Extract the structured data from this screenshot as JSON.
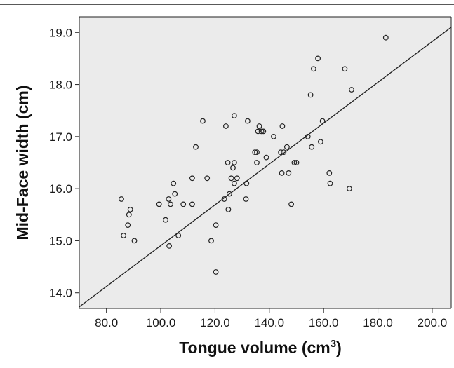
{
  "colors": {
    "plot_background": "#ebebeb",
    "axis": "#222222",
    "marker_stroke": "#222222",
    "fit_line": "#222222"
  },
  "chart_data": {
    "type": "scatter",
    "xlabel_main": "Tongue volume (cm",
    "xlabel_sup": "3",
    "xlabel_close": ")",
    "ylabel": "Mid-Face width (cm)",
    "xlim": [
      70,
      207
    ],
    "ylim": [
      13.7,
      19.3
    ],
    "xticks": [
      "80.0",
      "100.0",
      "120.0",
      "140.0",
      "160.0",
      "180.0",
      "200.0"
    ],
    "yticks": [
      "14.0",
      "15.0",
      "16.0",
      "17.0",
      "18.0",
      "19.0"
    ],
    "fit_line": [
      [
        70,
        13.73
      ],
      [
        207,
        19.1
      ]
    ],
    "points": [
      [
        85.5,
        15.8
      ],
      [
        86.3,
        15.1
      ],
      [
        87.9,
        15.3
      ],
      [
        88.3,
        15.5
      ],
      [
        88.8,
        15.6
      ],
      [
        90.3,
        15.0
      ],
      [
        99.4,
        15.7
      ],
      [
        101.8,
        15.4
      ],
      [
        102.9,
        15.8
      ],
      [
        103.1,
        14.9
      ],
      [
        103.6,
        15.7
      ],
      [
        104.7,
        16.1
      ],
      [
        105.2,
        15.9
      ],
      [
        106.5,
        15.1
      ],
      [
        108.3,
        15.7
      ],
      [
        111.6,
        15.7
      ],
      [
        111.6,
        16.2
      ],
      [
        112.9,
        16.8
      ],
      [
        115.5,
        17.3
      ],
      [
        117.1,
        16.2
      ],
      [
        118.6,
        15.0
      ],
      [
        120.3,
        15.3
      ],
      [
        120.3,
        14.4
      ],
      [
        123.4,
        15.8
      ],
      [
        124.0,
        17.2
      ],
      [
        124.7,
        16.5
      ],
      [
        124.9,
        15.6
      ],
      [
        125.3,
        15.9
      ],
      [
        126.0,
        16.2
      ],
      [
        126.6,
        16.4
      ],
      [
        127.1,
        16.1
      ],
      [
        127.1,
        16.5
      ],
      [
        127.1,
        17.4
      ],
      [
        128.1,
        16.2
      ],
      [
        131.4,
        15.8
      ],
      [
        131.6,
        16.1
      ],
      [
        132.0,
        17.3
      ],
      [
        134.7,
        16.7
      ],
      [
        135.4,
        16.7
      ],
      [
        135.4,
        16.5
      ],
      [
        135.8,
        17.1
      ],
      [
        136.3,
        17.2
      ],
      [
        137.1,
        17.1
      ],
      [
        137.8,
        17.1
      ],
      [
        138.9,
        16.6
      ],
      [
        141.6,
        17.0
      ],
      [
        144.2,
        16.7
      ],
      [
        144.6,
        16.3
      ],
      [
        144.8,
        17.2
      ],
      [
        145.3,
        16.7
      ],
      [
        146.5,
        16.8
      ],
      [
        147.1,
        16.3
      ],
      [
        148.1,
        15.7
      ],
      [
        149.2,
        16.5
      ],
      [
        150.0,
        16.5
      ],
      [
        154.2,
        17.0
      ],
      [
        155.2,
        17.8
      ],
      [
        155.6,
        16.8
      ],
      [
        156.3,
        18.3
      ],
      [
        157.9,
        18.5
      ],
      [
        158.9,
        16.9
      ],
      [
        159.6,
        17.3
      ],
      [
        162.1,
        16.3
      ],
      [
        162.4,
        16.1
      ],
      [
        167.8,
        18.3
      ],
      [
        169.5,
        16.0
      ],
      [
        170.3,
        17.9
      ],
      [
        182.9,
        18.9
      ]
    ]
  }
}
